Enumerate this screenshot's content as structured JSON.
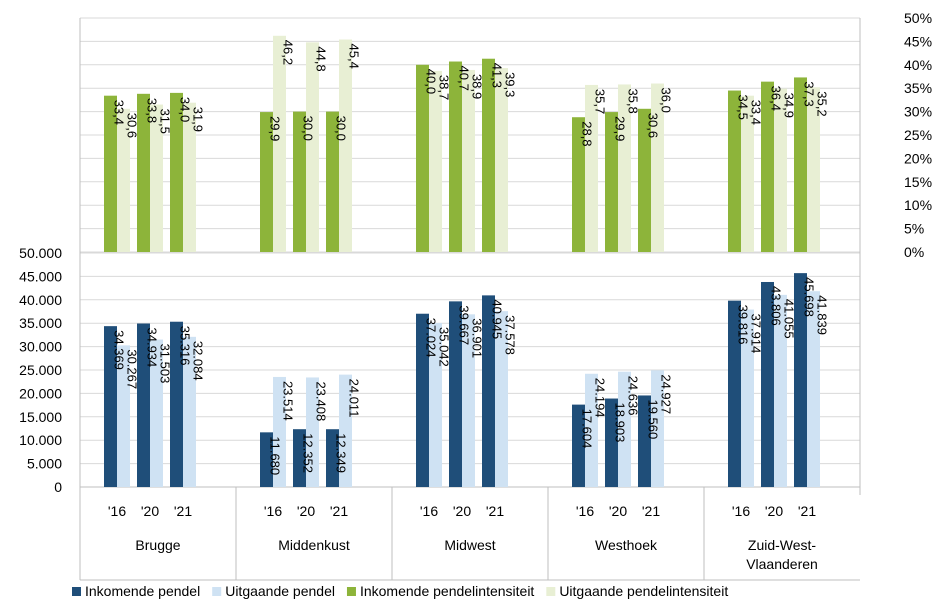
{
  "colors": {
    "inkomende_pendel": "#1f4e79",
    "uitgaande_pendel": "#cfe2f3",
    "inkomende_intensiteit": "#8db43a",
    "uitgaande_intensiteit": "#e8efd4",
    "grid": "#d9d9d9",
    "axis": "#bfbfbf"
  },
  "chart_data": [
    {
      "type": "bar",
      "panel": "top",
      "categories": [
        "Brugge",
        "Middenkust",
        "Midwest",
        "Westhoek",
        "Zuid-West-Vlaanderen"
      ],
      "years": [
        "'16",
        "'20",
        "'21"
      ],
      "series": [
        {
          "name": "Inkomende pendelintensiteit",
          "values": [
            [
              33.4,
              33.8,
              34.0
            ],
            [
              29.9,
              30.0,
              30.0
            ],
            [
              40.0,
              40.7,
              41.3
            ],
            [
              28.8,
              29.9,
              30.6
            ],
            [
              34.5,
              36.4,
              37.3
            ]
          ]
        },
        {
          "name": "Uitgaande pendelintensiteit",
          "values": [
            [
              30.6,
              31.5,
              31.9
            ],
            [
              46.2,
              44.8,
              45.4
            ],
            [
              38.7,
              38.9,
              39.3
            ],
            [
              35.7,
              35.8,
              36.0
            ],
            [
              33.4,
              34.9,
              35.2
            ]
          ]
        }
      ],
      "data_labels": [
        [
          [
            "33,4",
            "30,6"
          ],
          [
            "33,8",
            "31,5"
          ],
          [
            "34,0",
            "31,9"
          ]
        ],
        [
          [
            "29,9",
            "46,2"
          ],
          [
            "30,0",
            "44,8"
          ],
          [
            "30,0",
            "45,4"
          ]
        ],
        [
          [
            "40,0",
            "38,7"
          ],
          [
            "40,7",
            "38,9"
          ],
          [
            "41,3",
            "39,3"
          ]
        ],
        [
          [
            "28,8",
            "35,7"
          ],
          [
            "29,9",
            "35,8"
          ],
          [
            "30,6",
            "36,0"
          ]
        ],
        [
          [
            "34,5",
            "33,4"
          ],
          [
            "36,4",
            "34,9"
          ],
          [
            "37,3",
            "35,2"
          ]
        ]
      ],
      "ylim": [
        0,
        50
      ],
      "axis_side": "right",
      "yticks": [
        "0%",
        "5%",
        "10%",
        "15%",
        "20%",
        "25%",
        "30%",
        "35%",
        "40%",
        "45%",
        "50%"
      ]
    },
    {
      "type": "bar",
      "panel": "bottom",
      "categories": [
        "Brugge",
        "Middenkust",
        "Midwest",
        "Westhoek",
        "Zuid-West-Vlaanderen"
      ],
      "years": [
        "'16",
        "'20",
        "'21"
      ],
      "series": [
        {
          "name": "Inkomende pendel",
          "values": [
            [
              34369,
              34934,
              35316
            ],
            [
              11680,
              12352,
              12349
            ],
            [
              37024,
              39667,
              40945
            ],
            [
              17604,
              18903,
              19560
            ],
            [
              39816,
              43806,
              45698
            ]
          ]
        },
        {
          "name": "Uitgaande pendel",
          "values": [
            [
              30267,
              31503,
              32084
            ],
            [
              23514,
              23408,
              24011
            ],
            [
              35042,
              36901,
              37578
            ],
            [
              24194,
              24636,
              24927
            ],
            [
              37914,
              41055,
              41839
            ]
          ]
        }
      ],
      "data_labels": [
        [
          [
            "34.369",
            "30.267"
          ],
          [
            "34.934",
            "31.503"
          ],
          [
            "35.316",
            "32.084"
          ]
        ],
        [
          [
            "11.680",
            "23.514"
          ],
          [
            "12.352",
            "23.408"
          ],
          [
            "12.349",
            "24.011"
          ]
        ],
        [
          [
            "37.024",
            "35.042"
          ],
          [
            "39.667",
            "36.901"
          ],
          [
            "40.945",
            "37.578"
          ]
        ],
        [
          [
            "17.604",
            "24.194"
          ],
          [
            "18.903",
            "24.636"
          ],
          [
            "19.560",
            "24.927"
          ]
        ],
        [
          [
            "39.816",
            "37.914"
          ],
          [
            "43.806",
            "41.055"
          ],
          [
            "45.698",
            "41.839"
          ]
        ]
      ],
      "ylim": [
        0,
        50000
      ],
      "axis_side": "left",
      "yticks": [
        "0",
        "5.000",
        "10.000",
        "15.000",
        "20.000",
        "25.000",
        "30.000",
        "35.000",
        "40.000",
        "45.000",
        "50.000"
      ]
    }
  ],
  "category_labels": [
    [
      "Brugge"
    ],
    [
      "Middenkust"
    ],
    [
      "Midwest"
    ],
    [
      "Westhoek"
    ],
    [
      "Zuid-West-",
      "Vlaanderen"
    ]
  ],
  "legend": [
    {
      "label": "Inkomende pendel",
      "color_key": "inkomende_pendel"
    },
    {
      "label": "Uitgaande pendel",
      "color_key": "uitgaande_pendel"
    },
    {
      "label": "Inkomende pendelintensiteit",
      "color_key": "inkomende_intensiteit"
    },
    {
      "label": "Uitgaande pendelintensiteit",
      "color_key": "uitgaande_intensiteit"
    }
  ]
}
